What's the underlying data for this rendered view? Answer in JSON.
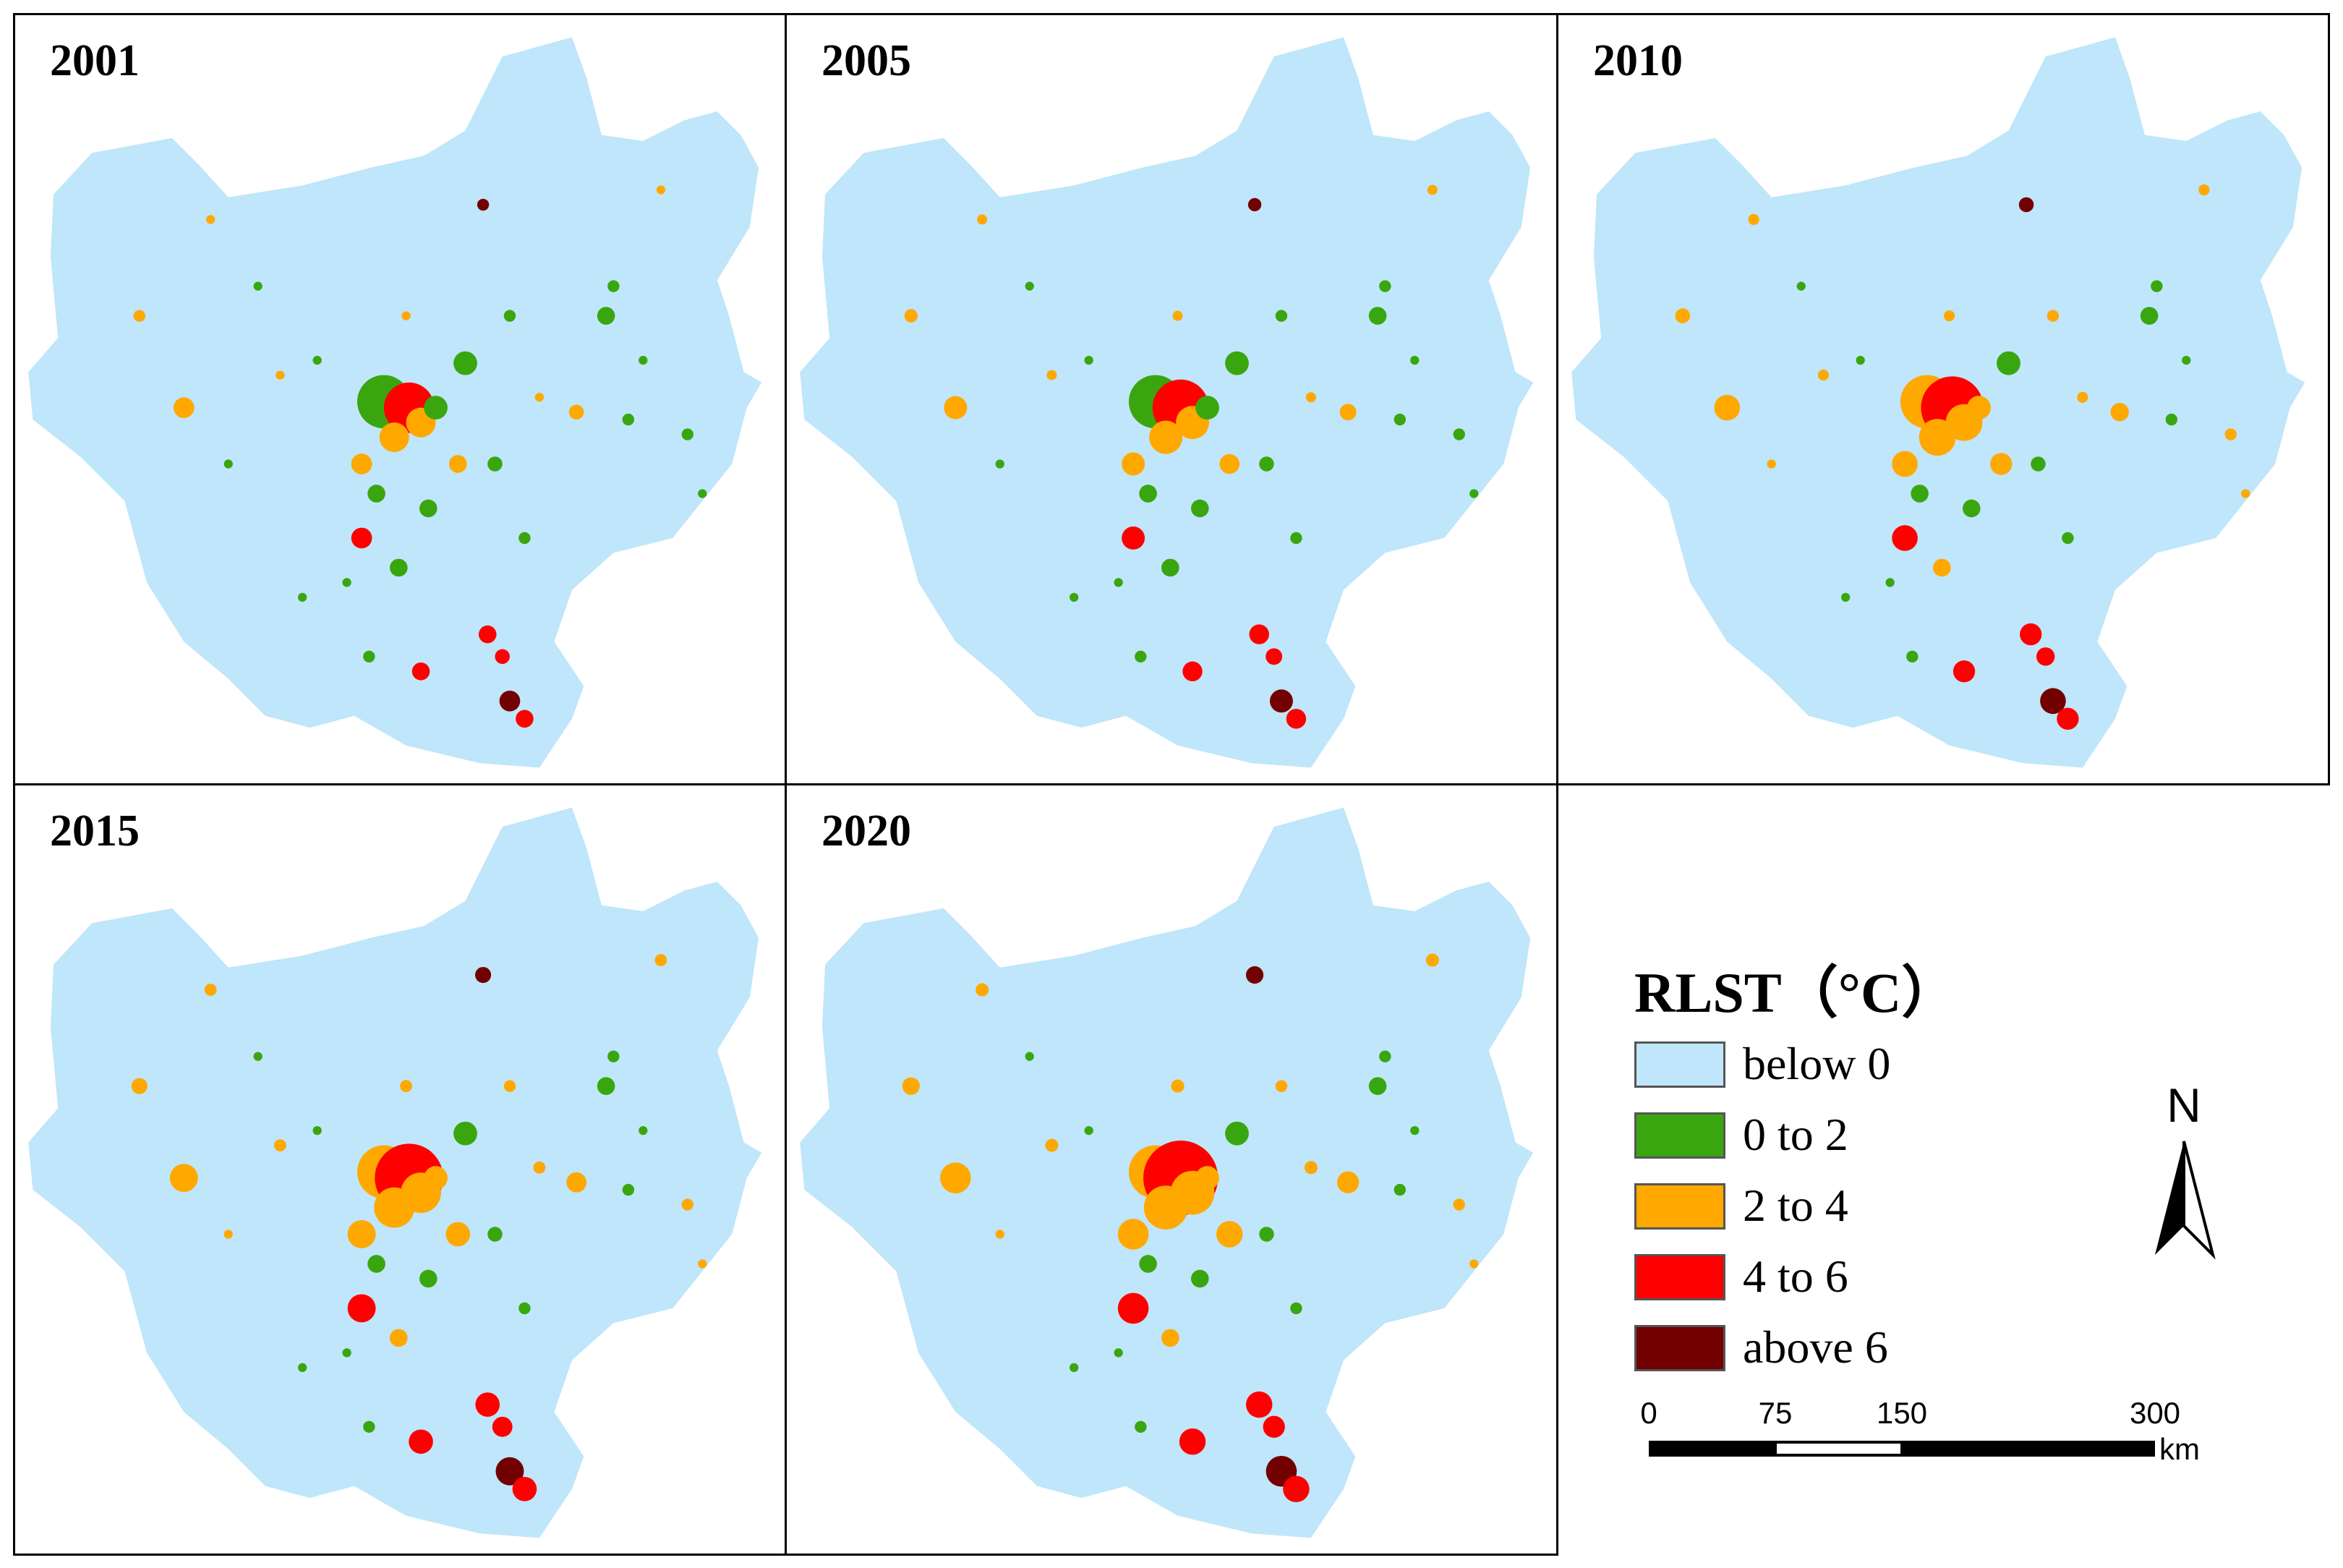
{
  "panels": [
    {
      "year": "2001"
    },
    {
      "year": "2005"
    },
    {
      "year": "2010"
    },
    {
      "year": "2015"
    },
    {
      "year": "2020"
    }
  ],
  "legend": {
    "title": "RLST（°C）",
    "items": [
      {
        "label": "below 0",
        "color": "#bfe6fa"
      },
      {
        "label": "0 to 2",
        "color": "#3aa60f"
      },
      {
        "label": "2 to 4",
        "color": "#ffa800"
      },
      {
        "label": "4 to 6",
        "color": "#ff0000"
      },
      {
        "label": "above 6",
        "color": "#730000"
      }
    ]
  },
  "north_arrow": {
    "label": "N"
  },
  "scale_bar": {
    "ticks": [
      "0",
      "75",
      "150",
      "300"
    ],
    "unit": "km"
  },
  "colors": {
    "border": "#000000",
    "region_fill": "#bfe6fa"
  }
}
